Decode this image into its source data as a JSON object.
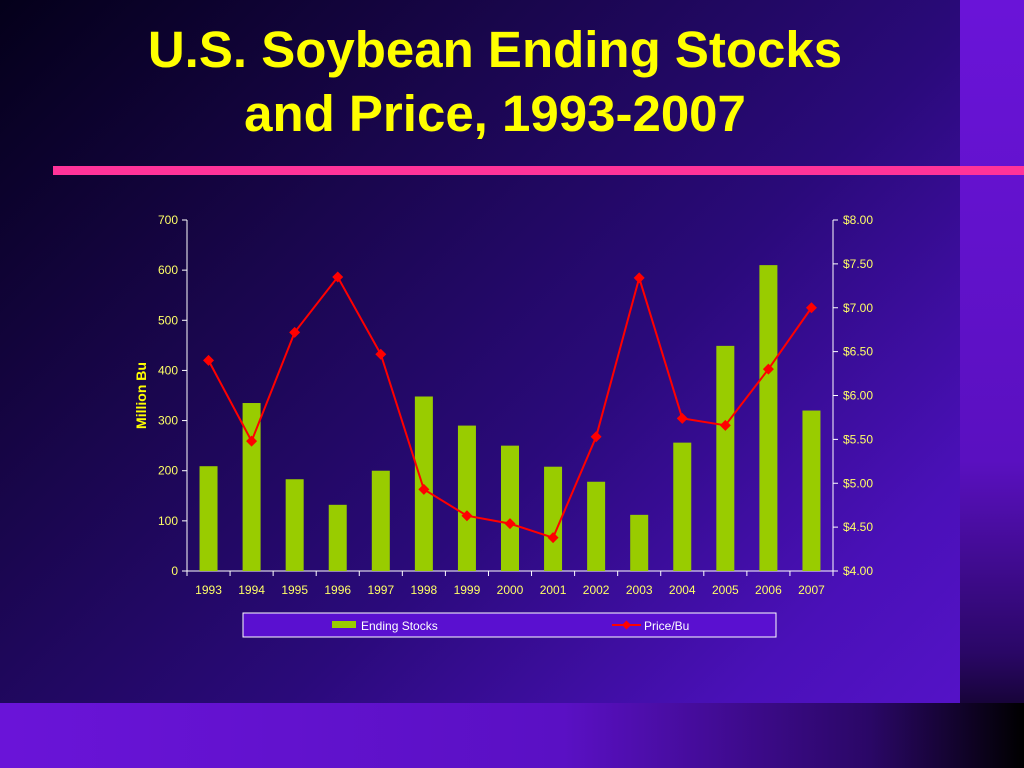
{
  "title": {
    "line1": "U.S. Soybean Ending Stocks",
    "line2": "and Price, 1993-2007"
  },
  "colors": {
    "title": "#ffff00",
    "rule": "#ff3399",
    "bar": "#99cc00",
    "line": "#ff0000",
    "tick_text": "#ffff66",
    "axis": "#ffffff"
  },
  "chart_data": {
    "type": "bar",
    "categories": [
      "1993",
      "1994",
      "1995",
      "1996",
      "1997",
      "1998",
      "1999",
      "2000",
      "2001",
      "2002",
      "2003",
      "2004",
      "2005",
      "2006",
      "2007"
    ],
    "series": [
      {
        "name": "Ending Stocks",
        "type": "bar",
        "axis": "left",
        "values": [
          209,
          335,
          183,
          132,
          200,
          348,
          290,
          250,
          208,
          178,
          112,
          256,
          449,
          610,
          320
        ]
      },
      {
        "name": "Price/Bu",
        "type": "line",
        "axis": "right",
        "marker": "diamond",
        "values": [
          6.4,
          5.48,
          6.72,
          7.35,
          6.47,
          4.93,
          4.63,
          4.54,
          4.38,
          5.53,
          7.34,
          5.74,
          5.66,
          6.3,
          7.0
        ]
      }
    ],
    "ylabel": "Million Bu",
    "ylim": [
      0,
      700
    ],
    "yticks": [
      "0",
      "100",
      "200",
      "300",
      "400",
      "500",
      "600",
      "700"
    ],
    "y2lim": [
      4.0,
      8.0
    ],
    "y2ticks": [
      "$4.00",
      "$4.50",
      "$5.00",
      "$5.50",
      "$6.00",
      "$6.50",
      "$7.00",
      "$7.50",
      "$8.00"
    ],
    "legend": [
      "Ending Stocks",
      "Price/Bu"
    ],
    "legend_position": "bottom",
    "grid": false
  }
}
